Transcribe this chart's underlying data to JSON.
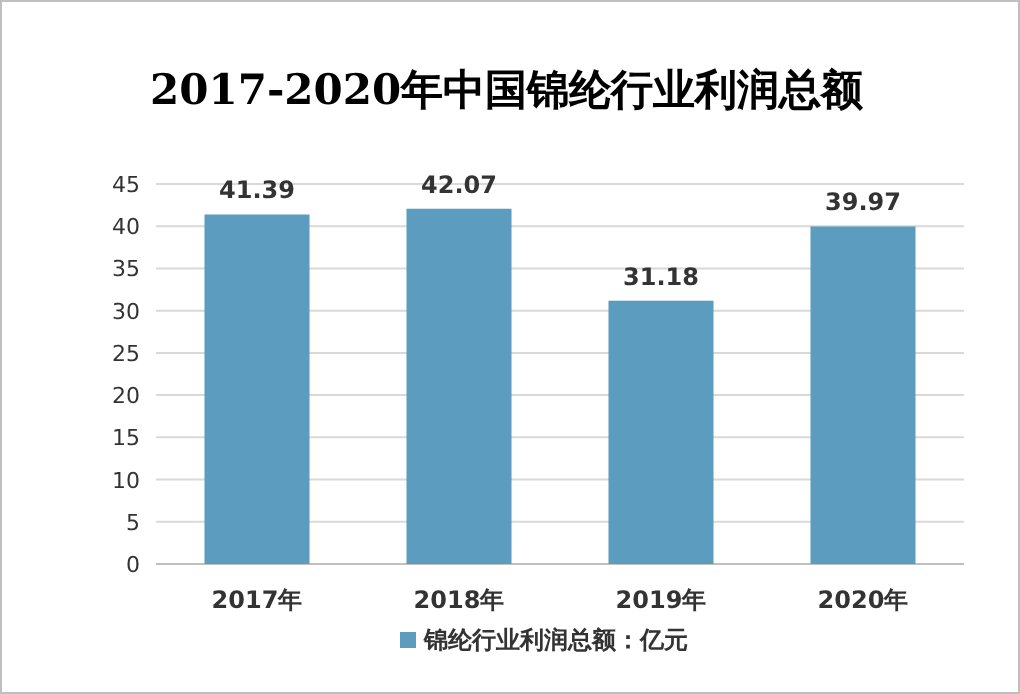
{
  "chart_data": {
    "type": "bar",
    "title": "2017-2020年中国锦纶行业利润总额",
    "categories": [
      "2017年",
      "2018年",
      "2019年",
      "2020年"
    ],
    "series": [
      {
        "name": "锦纶行业利润总额：亿元",
        "color": "#5c9dbf",
        "values": [
          41.39,
          42.07,
          31.18,
          39.97
        ]
      }
    ],
    "ylim": [
      0,
      45
    ],
    "yticks": [
      0,
      5,
      10,
      15,
      20,
      25,
      30,
      35,
      40,
      45
    ],
    "grid": "y",
    "data_labels": true,
    "legend": "bottom"
  }
}
